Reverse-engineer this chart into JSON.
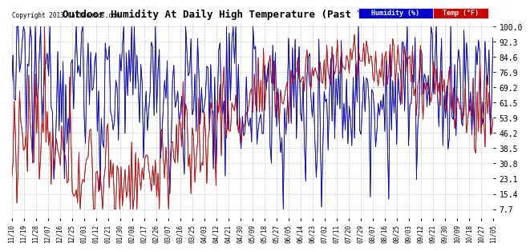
{
  "title": "Outdoor Humidity At Daily High Temperature (Past Year) 20131110",
  "copyright_text": "Copyright 2013 Cartronics.com",
  "legend_humidity_label": "Humidity (%)",
  "legend_temp_label": "Temp (°F)",
  "humidity_color": "blue",
  "temp_color": "red",
  "background_color": "#ffffff",
  "grid_color": "#cccccc",
  "yticks": [
    7.7,
    15.4,
    23.1,
    30.8,
    38.5,
    46.2,
    53.9,
    61.5,
    69.2,
    76.9,
    84.6,
    92.3,
    100.0
  ],
  "ylim": [
    3,
    103
  ],
  "xtick_labels": [
    "11/10",
    "11/19",
    "11/28",
    "12/07",
    "12/16",
    "12/25",
    "01/03",
    "01/12",
    "01/21",
    "01/30",
    "02/08",
    "02/17",
    "02/26",
    "03/07",
    "03/16",
    "03/25",
    "04/03",
    "04/12",
    "04/21",
    "04/30",
    "05/09",
    "05/18",
    "05/27",
    "06/05",
    "06/14",
    "06/23",
    "07/02",
    "07/11",
    "07/20",
    "07/29",
    "08/07",
    "08/16",
    "08/25",
    "09/03",
    "09/12",
    "09/21",
    "09/30",
    "10/09",
    "10/18",
    "10/27",
    "11/05"
  ],
  "n_points": 366,
  "humidity_bg_color": "#0000cc",
  "temp_bg_color": "#cc0000"
}
